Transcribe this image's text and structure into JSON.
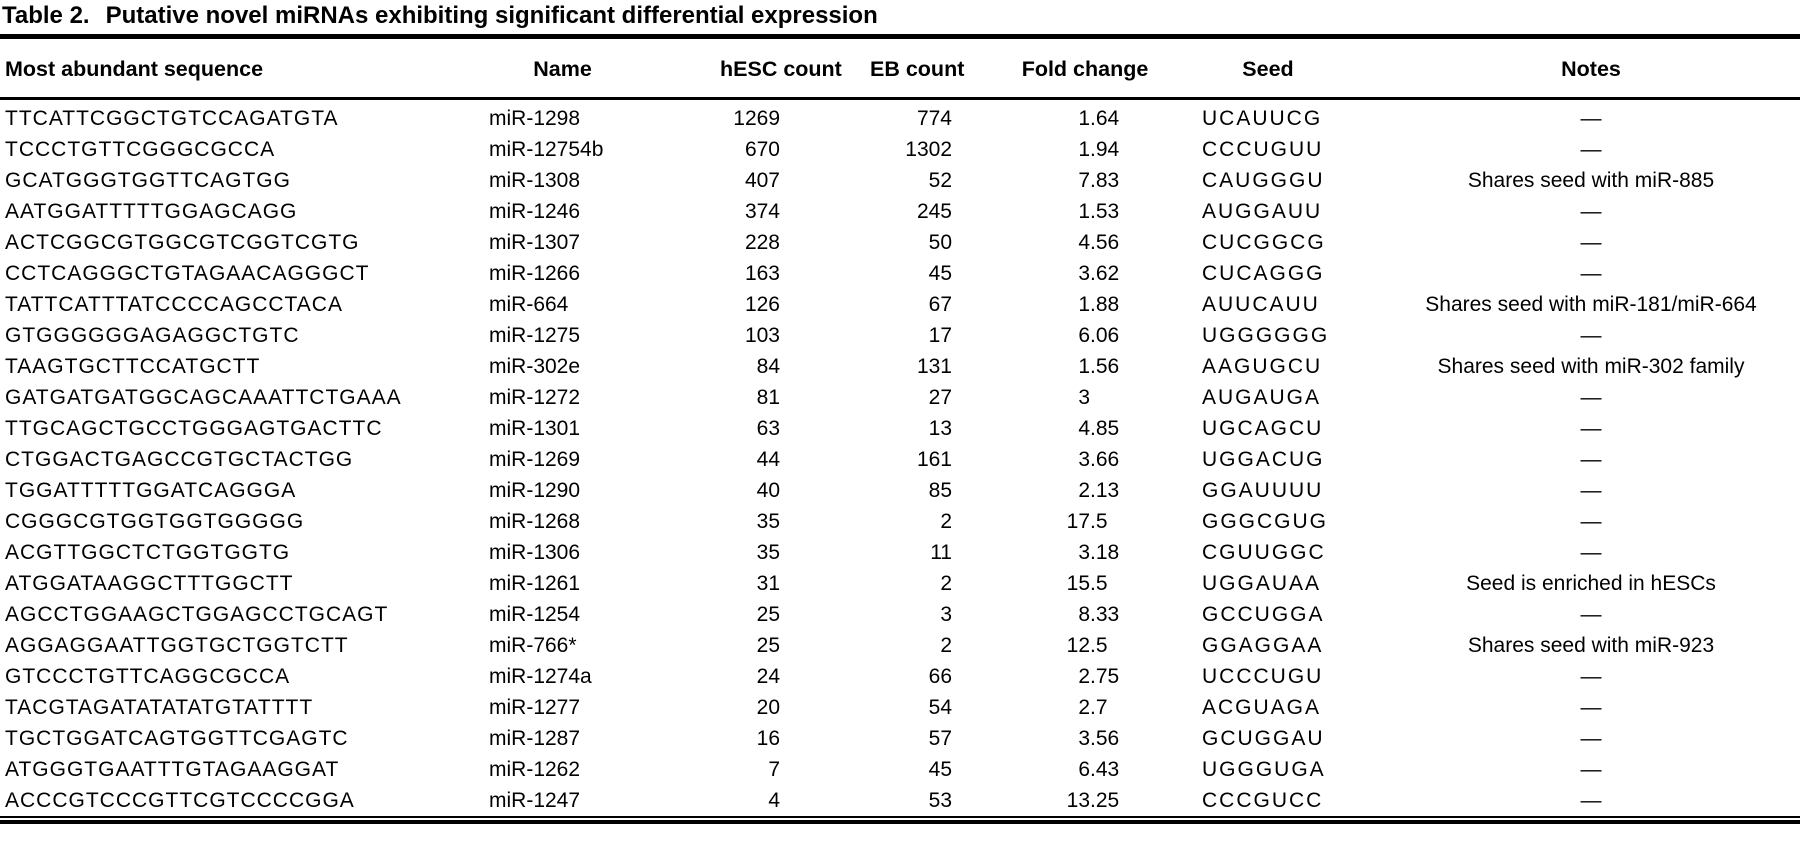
{
  "page": {
    "background": "#ffffff",
    "text_color": "#000000"
  },
  "table": {
    "title_label": "Table 2.",
    "title_text": "Putative novel miRNAs exhibiting significant differential expression",
    "columns": [
      "Most abundant sequence",
      "Name",
      "hESC count",
      "EB count",
      "Fold change",
      "Seed",
      "Notes"
    ],
    "empty_note_symbol": "—",
    "rows": [
      {
        "sequence": "TTCATTCGGCTGTCCAGATGTA",
        "name": "miR-1298",
        "hesc_count": "1269",
        "eb_count": "774",
        "fold_change": "1.64",
        "seed": "UCAUUCG",
        "notes": "—"
      },
      {
        "sequence": "TCCCTGTTCGGGCGCCA",
        "name": "miR-12754b",
        "hesc_count": "670",
        "eb_count": "1302",
        "fold_change": "1.94",
        "seed": "CCCUGUU",
        "notes": "—"
      },
      {
        "sequence": "GCATGGGTGGTTCAGTGG",
        "name": "miR-1308",
        "hesc_count": "407",
        "eb_count": "52",
        "fold_change": "7.83",
        "seed": "CAUGGGU",
        "notes": "Shares seed with miR-885"
      },
      {
        "sequence": "AATGGATTTTTGGAGCAGG",
        "name": "miR-1246",
        "hesc_count": "374",
        "eb_count": "245",
        "fold_change": "1.53",
        "seed": "AUGGAUU",
        "notes": "—"
      },
      {
        "sequence": "ACTCGGCGTGGCGTCGGTCGTG",
        "name": "miR-1307",
        "hesc_count": "228",
        "eb_count": "50",
        "fold_change": "4.56",
        "seed": "CUCGGCG",
        "notes": "—"
      },
      {
        "sequence": "CCTCAGGGCTGTAGAACAGGGCT",
        "name": "miR-1266",
        "hesc_count": "163",
        "eb_count": "45",
        "fold_change": "3.62",
        "seed": "CUCAGGG",
        "notes": "—"
      },
      {
        "sequence": "TATTCATTTATCCCCAGCCTACA",
        "name": "miR-664",
        "hesc_count": "126",
        "eb_count": "67",
        "fold_change": "1.88",
        "seed": "AUUCAUU",
        "notes": "Shares seed with miR-181/miR-664"
      },
      {
        "sequence": "GTGGGGGGAGAGGCTGTC",
        "name": "miR-1275",
        "hesc_count": "103",
        "eb_count": "17",
        "fold_change": "6.06",
        "seed": "UGGGGGG",
        "notes": "—"
      },
      {
        "sequence": "TAAGTGCTTCCATGCTT",
        "name": "miR-302e",
        "hesc_count": "84",
        "eb_count": "131",
        "fold_change": "1.56",
        "seed": "AAGUGCU",
        "notes": "Shares seed with miR-302 family"
      },
      {
        "sequence": "GATGATGATGGCAGCAAATTCTGAAA",
        "name": "miR-1272",
        "hesc_count": "81",
        "eb_count": "27",
        "fold_change": "3",
        "seed": "AUGAUGA",
        "notes": "—"
      },
      {
        "sequence": "TTGCAGCTGCCTGGGAGTGACTTC",
        "name": "miR-1301",
        "hesc_count": "63",
        "eb_count": "13",
        "fold_change": "4.85",
        "seed": "UGCAGCU",
        "notes": "—"
      },
      {
        "sequence": "CTGGACTGAGCCGTGCTACTGG",
        "name": "miR-1269",
        "hesc_count": "44",
        "eb_count": "161",
        "fold_change": "3.66",
        "seed": "UGGACUG",
        "notes": "—"
      },
      {
        "sequence": "TGGATTTTTGGATCAGGGA",
        "name": "miR-1290",
        "hesc_count": "40",
        "eb_count": "85",
        "fold_change": "2.13",
        "seed": "GGAUUUU",
        "notes": "—"
      },
      {
        "sequence": "CGGGCGTGGTGGTGGGGG",
        "name": "miR-1268",
        "hesc_count": "35",
        "eb_count": "2",
        "fold_change": "17.5",
        "seed": "GGGCGUG",
        "notes": "—"
      },
      {
        "sequence": "ACGTTGGCTCTGGTGGTG",
        "name": "miR-1306",
        "hesc_count": "35",
        "eb_count": "11",
        "fold_change": "3.18",
        "seed": "CGUUGGC",
        "notes": "—"
      },
      {
        "sequence": "ATGGATAAGGCTTTGGCTT",
        "name": "miR-1261",
        "hesc_count": "31",
        "eb_count": "2",
        "fold_change": "15.5",
        "seed": "UGGAUAA",
        "notes": "Seed is enriched in hESCs"
      },
      {
        "sequence": "AGCCTGGAAGCTGGAGCCTGCAGT",
        "name": "miR-1254",
        "hesc_count": "25",
        "eb_count": "3",
        "fold_change": "8.33",
        "seed": "GCCUGGA",
        "notes": "—"
      },
      {
        "sequence": "AGGAGGAATTGGTGCTGGTCTT",
        "name": "miR-766*",
        "hesc_count": "25",
        "eb_count": "2",
        "fold_change": "12.5",
        "seed": "GGAGGAA",
        "notes": "Shares seed with miR-923"
      },
      {
        "sequence": "GTCCCTGTTCAGGCGCCA",
        "name": "miR-1274a",
        "hesc_count": "24",
        "eb_count": "66",
        "fold_change": "2.75",
        "seed": "UCCCUGU",
        "notes": "—"
      },
      {
        "sequence": "TACGTAGATATATATGTATTTT",
        "name": "miR-1277",
        "hesc_count": "20",
        "eb_count": "54",
        "fold_change": "2.7",
        "seed": "ACGUAGA",
        "notes": "—"
      },
      {
        "sequence": "TGCTGGATCAGTGGTTCGAGTC",
        "name": "miR-1287",
        "hesc_count": "16",
        "eb_count": "57",
        "fold_change": "3.56",
        "seed": "GCUGGAU",
        "notes": "—"
      },
      {
        "sequence": "ATGGGTGAATTTGTAGAAGGAT",
        "name": "miR-1262",
        "hesc_count": "7",
        "eb_count": "45",
        "fold_change": "6.43",
        "seed": "UGGGUGA",
        "notes": "—"
      },
      {
        "sequence": "ACCCGTCCCGTTCGTCCCCGGA",
        "name": "miR-1247",
        "hesc_count": "4",
        "eb_count": "53",
        "fold_change": "13.25",
        "seed": "CCCGUCC",
        "notes": "—"
      }
    ]
  }
}
